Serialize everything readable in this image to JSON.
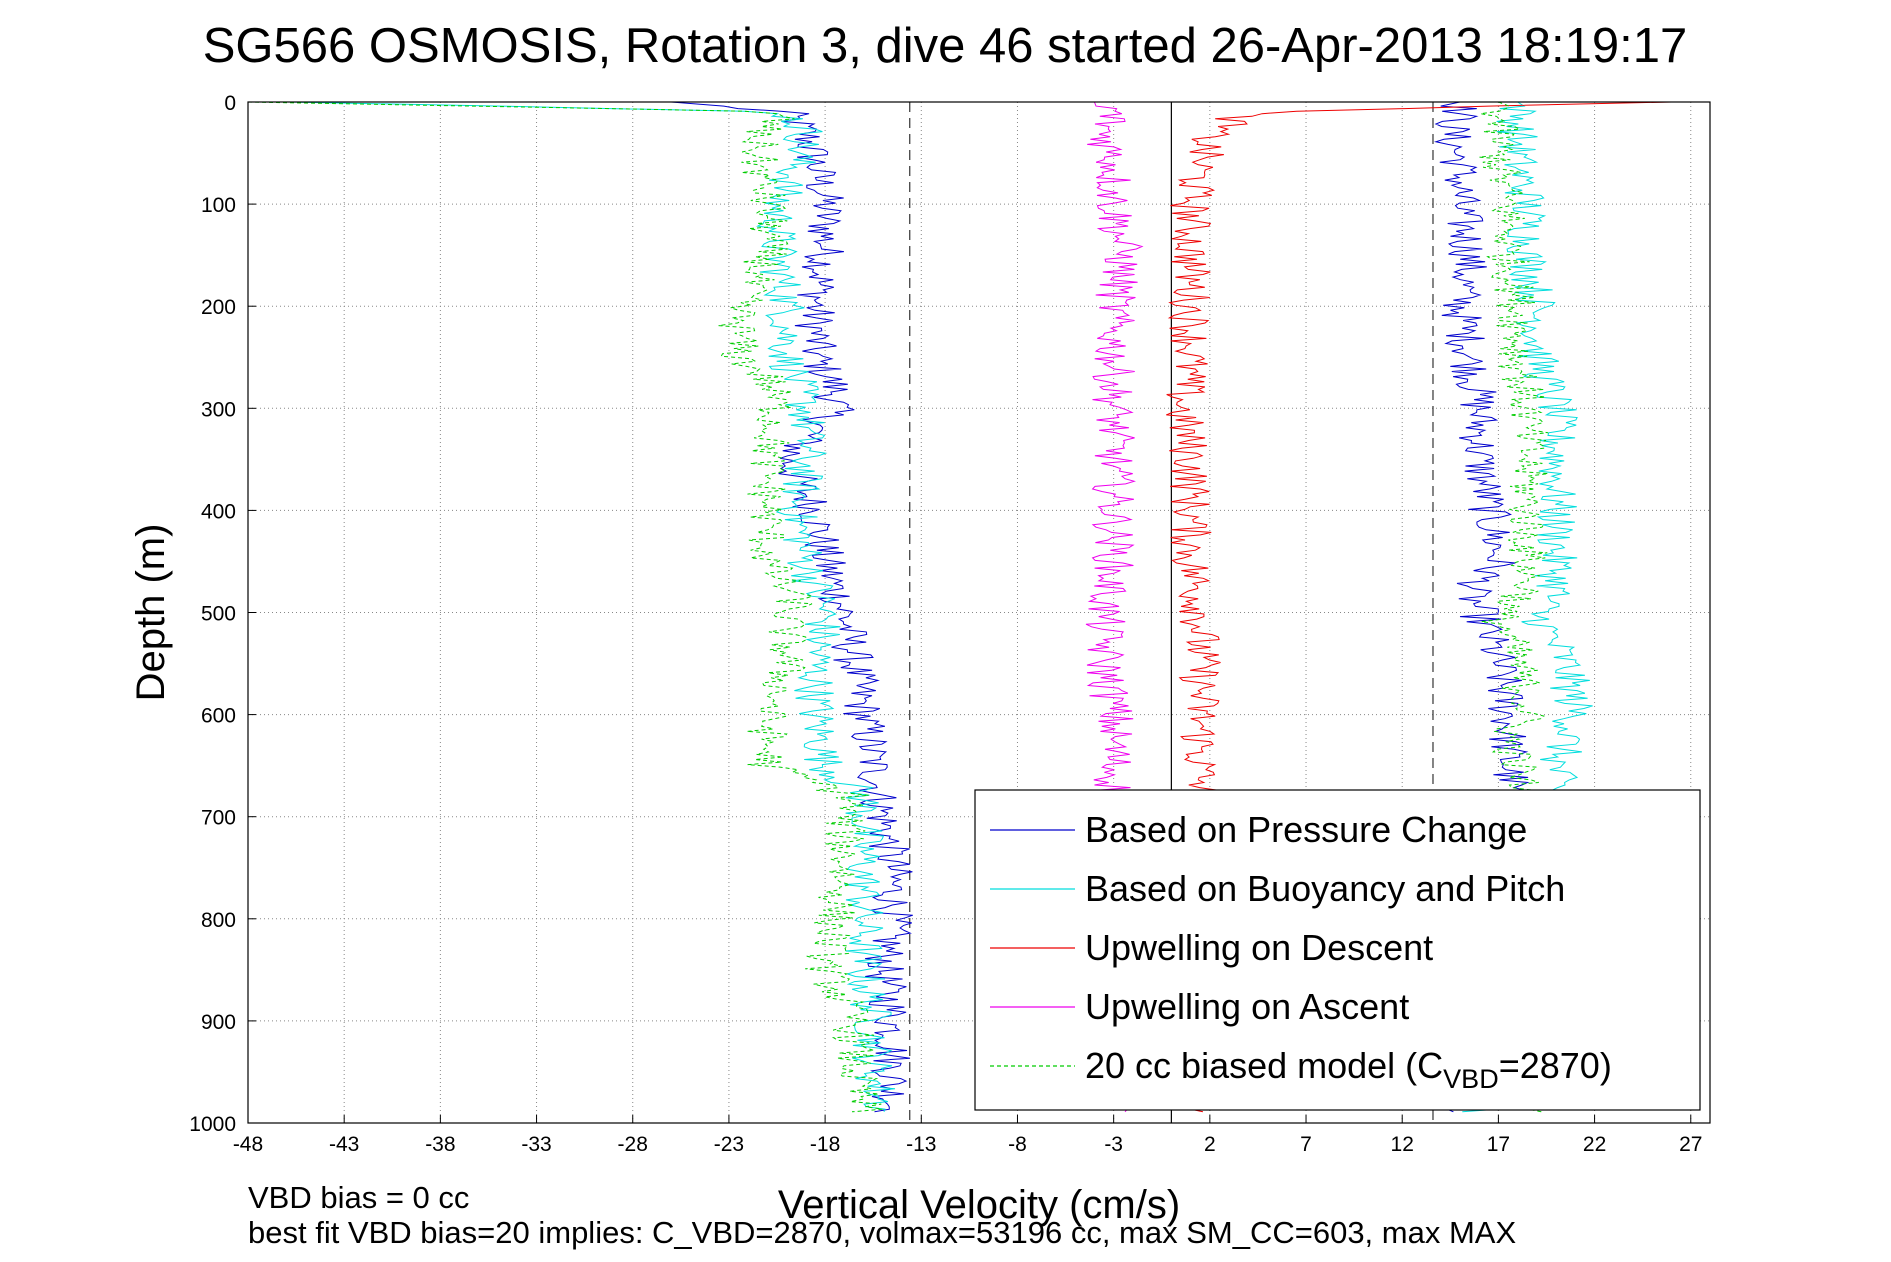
{
  "chart_data": {
    "type": "line",
    "title": "SG566 OSMOSIS, Rotation 3, dive 46 started 26-Apr-2013 18:19:17",
    "xlabel": "Vertical Velocity (cm/s)",
    "ylabel": "Depth (m)",
    "xlim": [
      -48,
      28
    ],
    "ylim": [
      1000,
      0
    ],
    "y_reversed": true,
    "grid": true,
    "legend_position": "bottom-right",
    "x_ticks": [
      "-48",
      "-43",
      "-38",
      "-33",
      "-28",
      "-23",
      "-18",
      "-13",
      "-8",
      "-3",
      "2",
      "7",
      "12",
      "17",
      "22",
      "27"
    ],
    "y_ticks": [
      "0",
      "100",
      "200",
      "300",
      "400",
      "500",
      "600",
      "700",
      "800",
      "900",
      "1000"
    ],
    "reference_lines": [
      {
        "x": -13.6,
        "style": "dashed"
      },
      {
        "x": 0,
        "style": "solid"
      },
      {
        "x": 13.6,
        "style": "dashed"
      }
    ],
    "series": [
      {
        "name": "Based on Pressure Change",
        "color": "#0000cc",
        "style": "solid",
        "branches": [
          {
            "depth": [
              0,
              10,
              30,
              60,
              100,
              150,
              200,
              250,
              280,
              300,
              350,
              400,
              450,
              500,
              550,
              600,
              650,
              700,
              750,
              800,
              850,
              900,
              950,
              990
            ],
            "velocity": [
              -26,
              -20,
              -19,
              -18.5,
              -18,
              -18,
              -18.5,
              -18.5,
              -17.5,
              -17.5,
              -20,
              -18.5,
              -18,
              -17,
              -16.5,
              -16,
              -15.5,
              -15,
              -14.5,
              -14.5,
              -15,
              -14.5,
              -14.5,
              -14.5
            ]
          },
          {
            "depth": [
              0,
              10,
              30,
              60,
              100,
              150,
              200,
              250,
              300,
              350,
              400,
              450,
              480,
              500,
              550,
              600,
              650,
              700,
              750,
              800,
              850,
              900,
              950,
              990
            ],
            "velocity": [
              15,
              15,
              14.5,
              15,
              15,
              15.5,
              15,
              15.5,
              16,
              16,
              16.5,
              17,
              15.5,
              16,
              17,
              17.5,
              17.5,
              18,
              18.5,
              18.5,
              19,
              19,
              19.5,
              14
            ]
          }
        ]
      },
      {
        "name": "Based on Buoyancy and Pitch",
        "color": "#00dddd",
        "style": "solid",
        "branches": [
          {
            "depth": [
              0,
              10,
              30,
              60,
              100,
              150,
              200,
              250,
              300,
              350,
              400,
              450,
              500,
              550,
              600,
              650,
              680,
              700,
              750,
              800,
              850,
              900,
              950,
              990
            ],
            "velocity": [
              -46,
              -20,
              -19,
              -19.5,
              -20.5,
              -20.5,
              -20,
              -20,
              -19,
              -19,
              -19.5,
              -19,
              -18,
              -18.5,
              -18.5,
              -18,
              -16,
              -16,
              -16,
              -16,
              -16,
              -15.5,
              -15.5,
              -15
            ]
          },
          {
            "depth": [
              0,
              10,
              30,
              60,
              100,
              150,
              200,
              250,
              300,
              350,
              400,
              450,
              480,
              500,
              550,
              600,
              650,
              700,
              750,
              800,
              850,
              900,
              950,
              990
            ],
            "velocity": [
              18,
              18,
              18,
              18,
              18.5,
              18.5,
              19,
              19,
              20,
              20,
              20,
              20,
              20,
              19,
              20.5,
              21,
              20,
              20,
              20.5,
              20.5,
              21,
              21,
              21.5,
              16
            ]
          }
        ]
      },
      {
        "name": "Upwelling on Descent",
        "color": "#ee0000",
        "style": "solid",
        "branches": [
          {
            "depth": [
              0,
              10,
              30,
              60,
              100,
              150,
              200,
              250,
              300,
              350,
              380,
              400,
              450,
              500,
              550,
              600,
              650,
              700,
              750,
              800,
              850,
              900,
              950,
              990
            ],
            "velocity": [
              26,
              4,
              2,
              1.5,
              1,
              1,
              1,
              1,
              0.5,
              1,
              1,
              1,
              1,
              1.5,
              1.5,
              1.5,
              1.5,
              1.5,
              1.5,
              1.5,
              1.5,
              1.5,
              1.5,
              1
            ]
          }
        ]
      },
      {
        "name": "Upwelling on Ascent",
        "color": "#ee00ee",
        "style": "solid",
        "branches": [
          {
            "depth": [
              0,
              10,
              30,
              60,
              100,
              150,
              200,
              250,
              300,
              350,
              400,
              450,
              500,
              550,
              600,
              650,
              700,
              750,
              800,
              850,
              900,
              950,
              990
            ],
            "velocity": [
              -4,
              -3,
              -3.5,
              -3,
              -3,
              -2.5,
              -3,
              -3,
              -3,
              -3,
              -3,
              -3,
              -3.5,
              -3.5,
              -3,
              -3,
              -3,
              -3,
              -3,
              -3,
              -3,
              -3,
              -3
            ]
          }
        ]
      },
      {
        "name": "20 cc biased model (C<sub>VBD</sub>=2870)",
        "legend_text": "20 cc biased model (C",
        "legend_sub": "VBD",
        "legend_suffix": "=2870)",
        "color": "#00cc00",
        "style": "dashed",
        "branches": [
          {
            "depth": [
              0,
              10,
              30,
              60,
              100,
              150,
              200,
              250,
              270,
              300,
              350,
              400,
              450,
              490,
              500,
              550,
              580,
              600,
              650,
              680,
              700,
              750,
              800,
              850,
              900,
              950,
              990
            ],
            "velocity": [
              -48,
              -20,
              -21.5,
              -21.5,
              -21,
              -21,
              -22.5,
              -22.5,
              -21,
              -20.5,
              -21,
              -21,
              -21,
              -19.5,
              -20,
              -20,
              -20.5,
              -21,
              -21,
              -16.5,
              -17,
              -17,
              -17.5,
              -18,
              -16.5,
              -16.5,
              -16
            ]
          },
          {
            "depth": [
              0,
              10,
              30,
              60,
              100,
              150,
              200,
              250,
              300,
              350,
              400,
              450,
              480,
              500,
              550,
              600,
              620,
              650,
              700,
              750,
              800,
              850,
              900,
              950,
              990
            ],
            "velocity": [
              17,
              17,
              17,
              17,
              17.5,
              17.5,
              18,
              18,
              18.5,
              18.5,
              18.5,
              18.5,
              18.5,
              17,
              18,
              18.5,
              17.5,
              18,
              18.5,
              18.5,
              19,
              19,
              19,
              19.5,
              19
            ]
          }
        ]
      }
    ]
  },
  "footer": {
    "line1": "VBD bias = 0 cc",
    "line2": "best fit VBD bias=20 implies: C_VBD=2870, volmax=53196 cc, max SM_CC=603, max MAX"
  }
}
